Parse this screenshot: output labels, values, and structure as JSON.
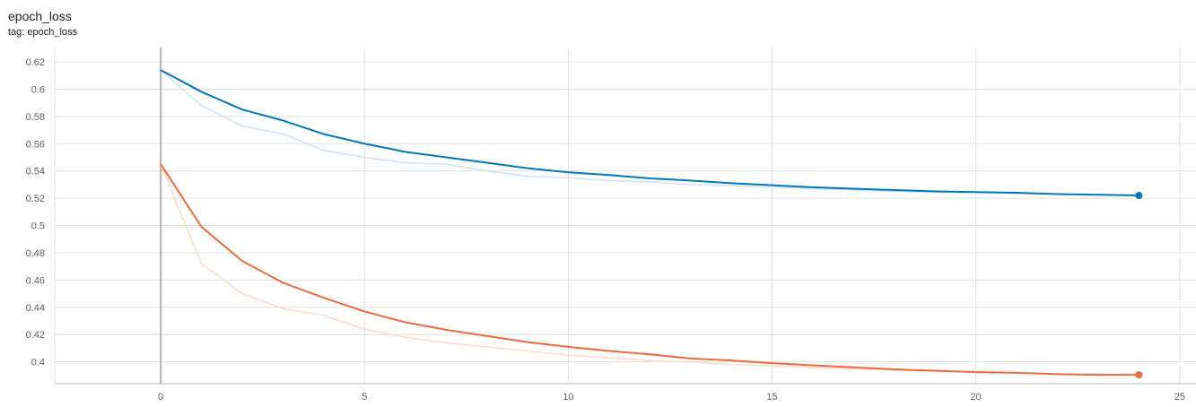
{
  "header": {
    "title": "epoch_loss",
    "subtitle": "tag: epoch_loss"
  },
  "chart_data": {
    "type": "line",
    "title": "epoch_loss",
    "subtitle": "tag: epoch_loss",
    "xlabel": "",
    "ylabel": "",
    "xlim": [
      -2.6,
      25.4
    ],
    "ylim": [
      0.384,
      0.6305
    ],
    "x_ticks": [
      0,
      5,
      10,
      15,
      20,
      25
    ],
    "y_ticks": [
      0.4,
      0.42,
      0.44,
      0.46,
      0.48,
      0.5,
      0.52,
      0.54,
      0.56,
      0.58,
      0.6,
      0.62
    ],
    "y_tick_labels": [
      "0.4",
      "0.42",
      "0.44",
      "0.46",
      "0.48",
      "0.5",
      "0.52",
      "0.54",
      "0.56",
      "0.58",
      "0.6",
      "0.62"
    ],
    "x_tick_labels": [
      "0",
      "5",
      "10",
      "15",
      "20",
      "25"
    ],
    "grid": true,
    "colors": {
      "blue": "#0077bb",
      "blue_raw": "#cde3f1",
      "orange": "#ee6a3b",
      "orange_raw": "#fcd9cc",
      "grid": "#e0e0e0",
      "zero_line": "#9e9e9e"
    },
    "x": [
      0,
      1,
      2,
      3,
      4,
      5,
      6,
      7,
      8,
      9,
      10,
      11,
      12,
      13,
      14,
      15,
      16,
      17,
      18,
      19,
      20,
      21,
      22,
      23,
      24
    ],
    "series": [
      {
        "color_key": "blue",
        "raw_values": [
          0.614,
          0.588,
          0.573,
          0.567,
          0.555,
          0.55,
          0.546,
          0.545,
          0.54,
          0.536,
          0.535,
          0.533,
          0.532,
          0.53,
          0.529,
          0.528,
          0.527,
          0.526,
          0.525,
          0.5245,
          0.524,
          0.5235,
          0.523,
          0.5225,
          0.522
        ],
        "values": [
          0.614,
          0.598,
          0.585,
          0.577,
          0.567,
          0.56,
          0.554,
          0.55,
          0.546,
          0.542,
          0.539,
          0.537,
          0.5345,
          0.533,
          0.531,
          0.5295,
          0.528,
          0.527,
          0.526,
          0.525,
          0.5245,
          0.524,
          0.523,
          0.5225,
          0.522
        ]
      },
      {
        "color_key": "orange",
        "raw_values": [
          0.545,
          0.472,
          0.45,
          0.439,
          0.434,
          0.424,
          0.418,
          0.414,
          0.411,
          0.408,
          0.405,
          0.403,
          0.401,
          0.4,
          0.398,
          0.397,
          0.396,
          0.395,
          0.394,
          0.393,
          0.393,
          0.392,
          0.391,
          0.391,
          0.39
        ],
        "values": [
          0.545,
          0.499,
          0.474,
          0.458,
          0.447,
          0.437,
          0.429,
          0.4235,
          0.419,
          0.4145,
          0.411,
          0.408,
          0.4055,
          0.4025,
          0.401,
          0.399,
          0.3975,
          0.396,
          0.3945,
          0.3935,
          0.3925,
          0.392,
          0.391,
          0.3905,
          0.3905
        ]
      }
    ]
  }
}
